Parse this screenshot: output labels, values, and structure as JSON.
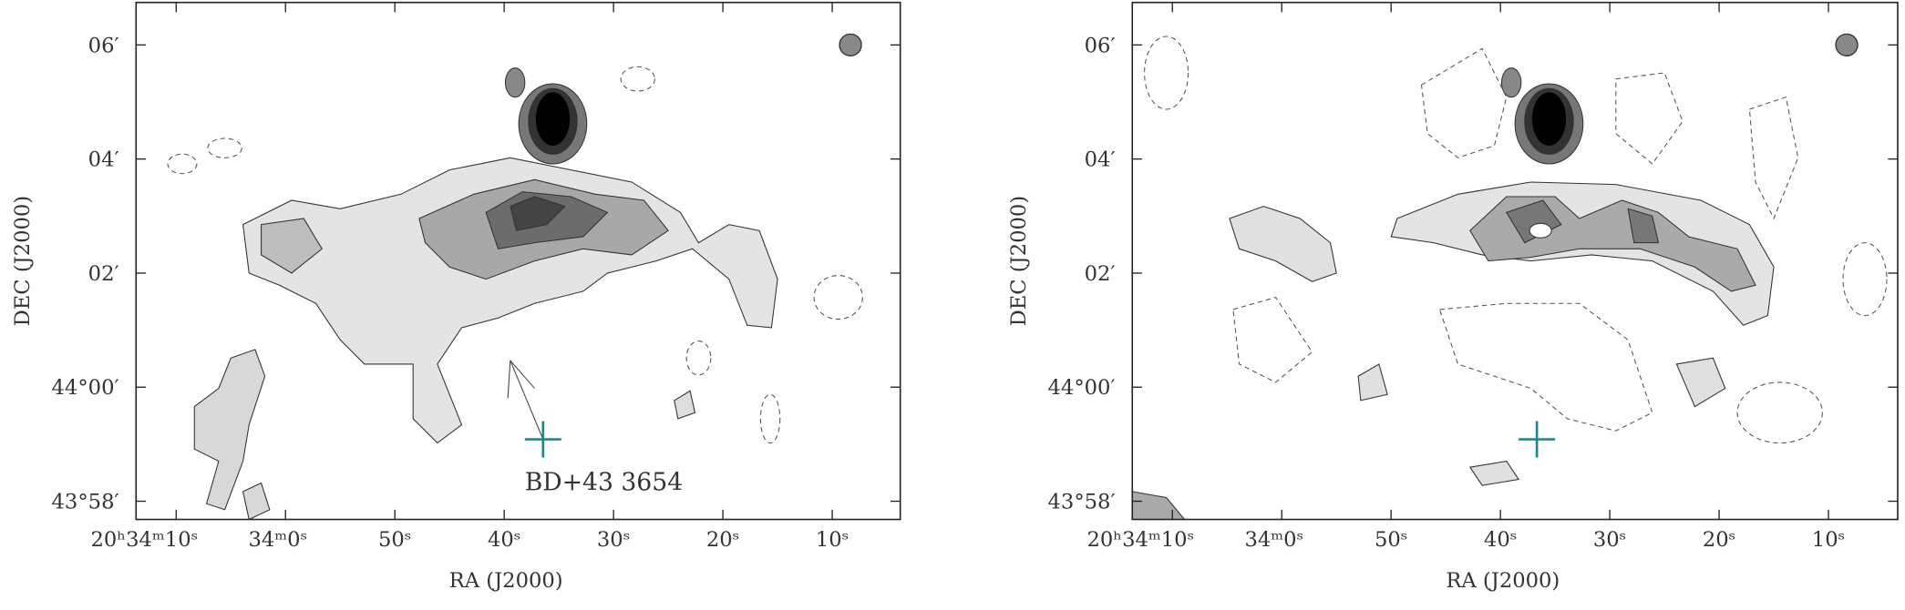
{
  "panels": [
    {
      "xlabel": "RA (J2000)",
      "ylabel": "DEC (J2000)",
      "yticks": [
        "06′",
        "04′",
        "02′",
        "44°00′",
        "43°58′"
      ],
      "xticks": [
        "20ʰ34ᵐ10ˢ",
        "34ᵐ0ˢ",
        "50ˢ",
        "40ˢ",
        "30ˢ",
        "20ˢ",
        "10ˢ"
      ],
      "annotation": "BD+43 3654"
    },
    {
      "xlabel": "RA (J2000)",
      "ylabel": "DEC (J2000)",
      "yticks": [
        "06′",
        "04′",
        "02′",
        "44°00′",
        "43°58′"
      ],
      "xticks": [
        "20ʰ34ᵐ10ˢ",
        "34ᵐ0ˢ",
        "50ˢ",
        "40ˢ",
        "30ˢ",
        "20ˢ",
        "10ˢ"
      ]
    }
  ]
}
